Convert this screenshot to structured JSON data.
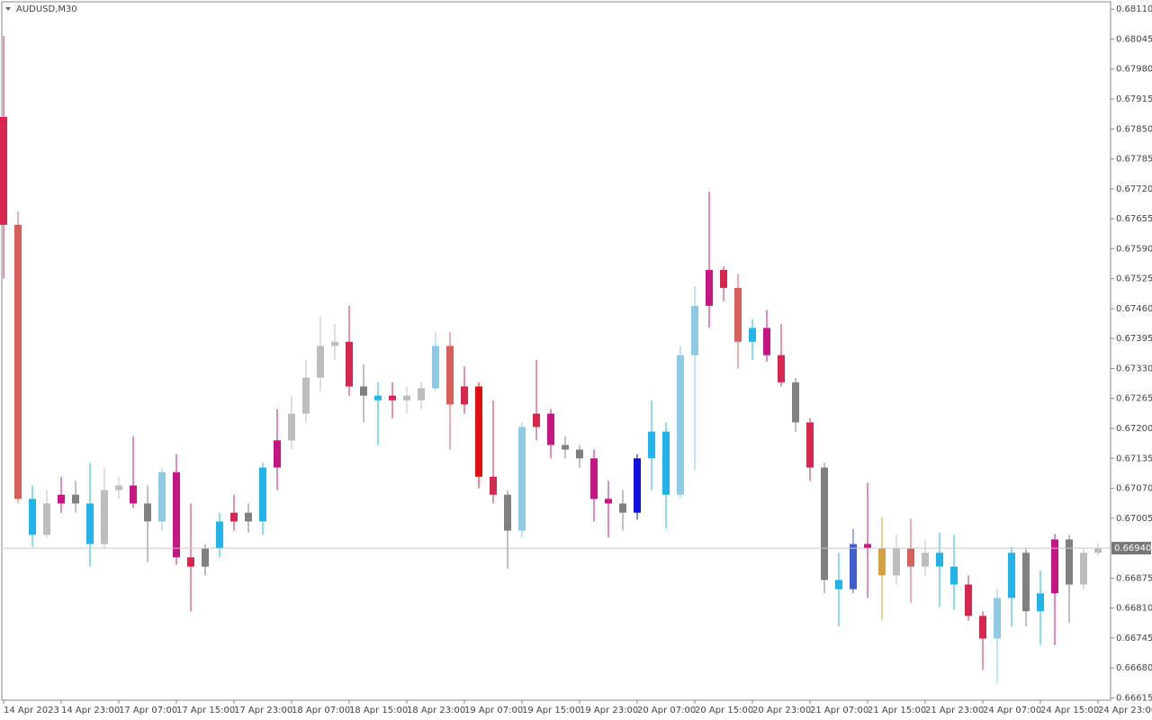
{
  "chart_data": {
    "type": "candlestick",
    "title": "AUDUSD,M30",
    "categories": [
      "14 Apr 2023",
      null,
      null,
      null,
      "14 Apr 23:00",
      null,
      null,
      null,
      "17 Apr 07:00",
      null,
      null,
      null,
      "17 Apr 15:00",
      null,
      null,
      null,
      "17 Apr 23:00",
      null,
      null,
      null,
      "18 Apr 07:00",
      null,
      null,
      null,
      "18 Apr 15:00",
      null,
      null,
      null,
      "18 Apr 23:00",
      null,
      null,
      null,
      "19 Apr 07:00",
      null,
      null,
      null,
      "19 Apr 15:00",
      null,
      null,
      null,
      "19 Apr 23:00",
      null,
      null,
      null,
      "20 Apr 07:00",
      null,
      null,
      null,
      "20 Apr 15:00",
      null,
      null,
      null,
      "20 Apr 23:00",
      null,
      null,
      null,
      "21 Apr 07:00",
      null,
      null,
      null,
      "21 Apr 15:00",
      null,
      null,
      null,
      "21 Apr 23:00",
      null,
      null,
      null,
      "24 Apr 07:00",
      null,
      null,
      null,
      "24 Apr 15:00",
      null,
      null,
      null,
      "24 Apr 23:00"
    ],
    "open": [
      0.67876,
      0.67642,
      0.67047,
      0.66969,
      0.67037,
      0.67056,
      0.67037,
      0.66949,
      0.67066,
      0.67076,
      0.67037,
      0.66998,
      0.67105,
      0.6692,
      0.669,
      0.66939,
      0.66998,
      0.67017,
      0.66998,
      0.67115,
      0.67174,
      0.67232,
      0.6731,
      0.67379,
      0.67388,
      0.67291,
      0.67271,
      0.67261,
      0.67271,
      0.67261,
      0.67287,
      0.67379,
      0.67252,
      0.67291,
      0.67095,
      0.67056,
      0.66978,
      0.67203,
      0.67232,
      0.67164,
      0.67154,
      0.67135,
      0.67047,
      0.67037,
      0.67017,
      0.67135,
      0.67193,
      0.67056,
      0.67359,
      0.67466,
      0.67544,
      0.67505,
      0.67388,
      0.67418,
      0.67359,
      0.673,
      0.67213,
      0.67115,
      0.66871,
      0.66851,
      0.66949,
      0.66939,
      0.66881,
      0.66939,
      0.669,
      0.6693,
      0.669,
      0.66861,
      0.66793,
      0.66744,
      0.66832,
      0.6693,
      0.66803,
      0.66842,
      0.66959,
      0.66861,
      0.6693
    ],
    "high": [
      0.68052,
      0.67671,
      0.67076,
      0.67066,
      0.67095,
      0.67086,
      0.67125,
      0.67115,
      0.67095,
      0.67183,
      0.67076,
      0.67115,
      0.67144,
      0.67037,
      0.66949,
      0.67017,
      0.67056,
      0.67037,
      0.67125,
      0.67242,
      0.67271,
      0.67349,
      0.67443,
      0.67427,
      0.67466,
      0.67339,
      0.673,
      0.673,
      0.67291,
      0.673,
      0.67408,
      0.67408,
      0.67334,
      0.673,
      0.67261,
      0.67066,
      0.67213,
      0.67349,
      0.67242,
      0.67183,
      0.67164,
      0.67154,
      0.67086,
      0.67066,
      0.67144,
      0.67261,
      0.67213,
      0.67379,
      0.67509,
      0.67714,
      0.67552,
      0.67535,
      0.67437,
      0.67457,
      0.67427,
      0.6731,
      0.67222,
      0.67125,
      0.6693,
      0.66982,
      0.67082,
      0.67008,
      0.66969,
      0.67004,
      0.66959,
      0.66974,
      0.66969,
      0.66881,
      0.66803,
      0.66851,
      0.66943,
      0.66939,
      0.66891,
      0.66971,
      0.66969,
      0.66939,
      0.66951
    ],
    "low": [
      0.67525,
      0.67037,
      0.66943,
      0.66963,
      0.67017,
      0.67017,
      0.669,
      0.66939,
      0.67047,
      0.67027,
      0.6691,
      0.66978,
      0.66904,
      0.66803,
      0.66881,
      0.6692,
      0.66978,
      0.66974,
      0.66969,
      0.67066,
      0.67154,
      0.67213,
      0.67281,
      0.67349,
      0.67271,
      0.67213,
      0.67164,
      0.67222,
      0.67232,
      0.67242,
      0.67281,
      0.67154,
      0.67232,
      0.6707,
      0.67037,
      0.66896,
      0.66963,
      0.67174,
      0.67135,
      0.67135,
      0.67115,
      0.66998,
      0.66963,
      0.66978,
      0.67002,
      0.67066,
      0.66982,
      0.67047,
      0.67109,
      0.67418,
      0.67476,
      0.6733,
      0.67349,
      0.67345,
      0.67291,
      0.67193,
      0.67086,
      0.66842,
      0.6677,
      0.66842,
      0.66832,
      0.66783,
      0.66861,
      0.66822,
      0.66881,
      0.66812,
      0.66807,
      0.66783,
      0.66676,
      0.66647,
      0.6677,
      0.6677,
      0.6673,
      0.6673,
      0.66777,
      0.66851,
      0.66924
    ],
    "close": [
      0.67642,
      0.67047,
      0.66969,
      0.67037,
      0.67056,
      0.67037,
      0.66949,
      0.67066,
      0.67076,
      0.67037,
      0.66998,
      0.67105,
      0.6692,
      0.669,
      0.66939,
      0.66998,
      0.67017,
      0.66998,
      0.67115,
      0.67174,
      0.67232,
      0.6731,
      0.67379,
      0.67388,
      0.67291,
      0.67271,
      0.67261,
      0.67271,
      0.67261,
      0.67287,
      0.67379,
      0.67252,
      0.67291,
      0.67095,
      0.67056,
      0.66978,
      0.67203,
      0.67232,
      0.67164,
      0.67154,
      0.67135,
      0.67047,
      0.67037,
      0.67017,
      0.67135,
      0.67193,
      0.67056,
      0.67359,
      0.67466,
      0.67544,
      0.67505,
      0.67388,
      0.67418,
      0.67359,
      0.673,
      0.67213,
      0.67115,
      0.66871,
      0.66851,
      0.66949,
      0.66939,
      0.66881,
      0.66939,
      0.669,
      0.6693,
      0.669,
      0.66861,
      0.66793,
      0.66744,
      0.66832,
      0.6693,
      0.66803,
      0.66842,
      0.66959,
      0.66861,
      0.6693,
      0.66941
    ],
    "colors": [
      "#d6264f",
      "#d9605a",
      "#1fb5ea",
      "#bdbdbd",
      "#c71585",
      "#808080",
      "#1fb5ea",
      "#bdbdbd",
      "#bdbdbd",
      "#c71585",
      "#808080",
      "#8ecae6",
      "#c71585",
      "#d6264f",
      "#808080",
      "#1fb5ea",
      "#d6264f",
      "#808080",
      "#1fb5ea",
      "#c71585",
      "#bdbdbd",
      "#bdbdbd",
      "#bdbdbd",
      "#bdbdbd",
      "#d6264f",
      "#808080",
      "#1fb5ea",
      "#d6264f",
      "#bdbdbd",
      "#bdbdbd",
      "#8ecae6",
      "#d9605a",
      "#d6264f",
      "#e01010",
      "#d6264f",
      "#808080",
      "#8ecae6",
      "#d6264f",
      "#c71585",
      "#808080",
      "#808080",
      "#c71585",
      "#c71585",
      "#808080",
      "#1010e0",
      "#1fb5ea",
      "#1fb5ea",
      "#8ecae6",
      "#8ecae6",
      "#c71585",
      "#d6264f",
      "#d9605a",
      "#1fb5ea",
      "#c71585",
      "#d6264f",
      "#808080",
      "#d6264f",
      "#808080",
      "#1fb5ea",
      "#3f5fcf",
      "#c71585",
      "#d4a041",
      "#bdbdbd",
      "#d9605a",
      "#bdbdbd",
      "#1fb5ea",
      "#1fb5ea",
      "#d6264f",
      "#d6264f",
      "#8ecae6",
      "#1fb5ea",
      "#808080",
      "#1fb5ea",
      "#c71585",
      "#808080",
      "#bdbdbd",
      "#bdbdbd"
    ],
    "ylim": [
      0.6661,
      0.68126
    ],
    "yticks": [
      {
        "value": 0.6811,
        "label": "0.68110"
      },
      0.68045,
      {
        "value": 0.6798,
        "label": "0.67980"
      },
      0.67915,
      {
        "value": 0.6785,
        "label": "0.67850"
      },
      0.67785,
      {
        "value": 0.6772,
        "label": "0.67720"
      },
      0.67655,
      {
        "value": 0.6759,
        "label": "0.67590"
      },
      0.67525,
      {
        "value": 0.6746,
        "label": "0.67460"
      },
      0.67395,
      {
        "value": 0.6733,
        "label": "0.67330"
      },
      0.67265,
      {
        "value": 0.672,
        "label": "0.67200"
      },
      0.67135,
      {
        "value": 0.6707,
        "label": "0.67070"
      },
      0.67005,
      0.66875,
      {
        "value": 0.6681,
        "label": "0.66810"
      },
      0.66745,
      {
        "value": 0.6668,
        "label": "0.66680"
      },
      0.66615
    ],
    "last_price": {
      "value": 0.6694,
      "label": "0.66940"
    }
  }
}
